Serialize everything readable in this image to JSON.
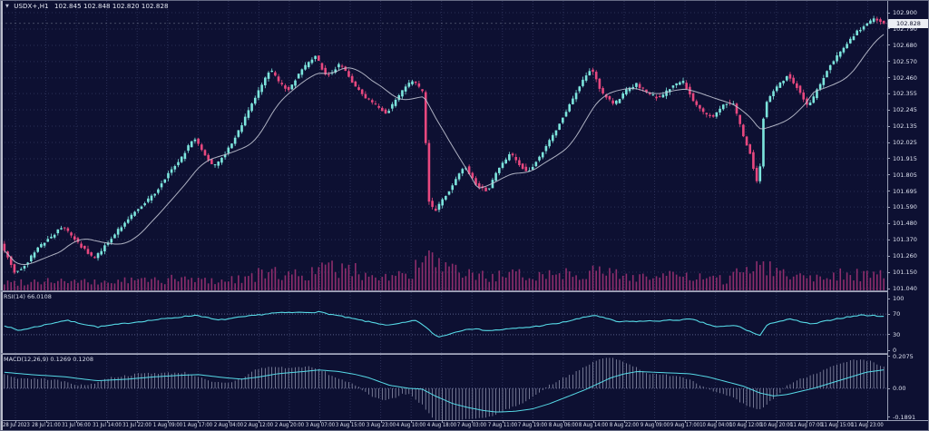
{
  "window": {
    "dropdown_arrow": "▼",
    "title_symbol": "USDX+,H1",
    "title_ohlc": "102.845 102.848 102.820 102.828"
  },
  "panes": {
    "rsi_label": "RSI(14) 66.0108",
    "macd_label": "MACD(12,26,9) 0.1269 0.1208"
  },
  "price_axis": {
    "labels": [
      "102.900",
      "102.790",
      "102.680",
      "102.570",
      "102.460",
      "102.355",
      "102.245",
      "102.135",
      "102.025",
      "101.915",
      "101.805",
      "101.695",
      "101.590",
      "101.480",
      "101.370",
      "101.260",
      "101.150",
      "101.040"
    ],
    "current_tag": "102.828",
    "rsi_labels": [
      {
        "text": "100",
        "value": 100
      },
      {
        "text": "70",
        "value": 70
      },
      {
        "text": "30",
        "value": 30
      },
      {
        "text": "0",
        "value": 0
      }
    ],
    "macd_labels": [
      {
        "text": "0.2075",
        "value": 0.2075
      },
      {
        "text": "0.00",
        "value": 0
      },
      {
        "text": "-0.1891",
        "value": -0.1891
      }
    ]
  },
  "time_axis": {
    "labels": [
      "28 Jul 2023",
      "28 Jul 21:00",
      "31 Jul 06:00",
      "31 Jul 14:00",
      "31 Jul 22:00",
      "1 Aug 09:00",
      "1 Aug 17:00",
      "2 Aug 04:00",
      "2 Aug 12:00",
      "2 Aug 20:00",
      "3 Aug 07:00",
      "3 Aug 15:00",
      "3 Aug 23:00",
      "4 Aug 10:00",
      "4 Aug 18:00",
      "7 Aug 03:00",
      "7 Aug 11:00",
      "7 Aug 19:00",
      "8 Aug 06:00",
      "8 Aug 14:00",
      "8 Aug 22:00",
      "9 Aug 09:00",
      "9 Aug 17:00",
      "10 Aug 04:00",
      "10 Aug 12:00",
      "10 Aug 20:00",
      "11 Aug 07:00",
      "11 Aug 15:00",
      "11 Aug 23:00"
    ]
  },
  "colors": {
    "background": "#0d1032",
    "grid": "#2b3057",
    "level": "#565c86",
    "bull": "#7ce5dd",
    "bear": "#e8487f",
    "volume": "#a63377",
    "ma": "#c0c3d2",
    "indicator": "#56d9e6",
    "macd_hist": "#b9bdd4",
    "axis_text": "#dde1ef",
    "tag_bg": "#eceef4",
    "tag_text": "#10122c"
  },
  "chart_data": {
    "type": "candlestick",
    "symbol": "USDX+",
    "timeframe": "H1",
    "current_bar": {
      "open": 102.845,
      "high": 102.848,
      "low": 102.82,
      "close": 102.828
    },
    "price_range": [
      101.04,
      102.9
    ],
    "bars": 264,
    "time_start": "28 Jul 2023 00:00",
    "time_end": "11 Aug 2023 23:00",
    "grid": "dotted",
    "legend_position": "none",
    "price_path": [
      [
        0.0,
        101.34
      ],
      [
        0.006,
        101.27
      ],
      [
        0.016,
        101.14
      ],
      [
        0.03,
        101.22
      ],
      [
        0.039,
        101.3
      ],
      [
        0.055,
        101.38
      ],
      [
        0.07,
        101.46
      ],
      [
        0.09,
        101.33
      ],
      [
        0.106,
        101.24
      ],
      [
        0.125,
        101.38
      ],
      [
        0.152,
        101.56
      ],
      [
        0.175,
        101.68
      ],
      [
        0.188,
        101.8
      ],
      [
        0.205,
        101.92
      ],
      [
        0.219,
        102.06
      ],
      [
        0.232,
        101.94
      ],
      [
        0.242,
        101.86
      ],
      [
        0.256,
        101.96
      ],
      [
        0.27,
        102.1
      ],
      [
        0.285,
        102.28
      ],
      [
        0.306,
        102.52
      ],
      [
        0.317,
        102.42
      ],
      [
        0.327,
        102.38
      ],
      [
        0.34,
        102.5
      ],
      [
        0.352,
        102.58
      ],
      [
        0.358,
        102.61
      ],
      [
        0.368,
        102.48
      ],
      [
        0.376,
        102.5
      ],
      [
        0.386,
        102.56
      ],
      [
        0.4,
        102.42
      ],
      [
        0.414,
        102.33
      ],
      [
        0.425,
        102.28
      ],
      [
        0.438,
        102.22
      ],
      [
        0.452,
        102.34
      ],
      [
        0.462,
        102.42
      ],
      [
        0.469,
        102.44
      ],
      [
        0.477,
        102.38
      ],
      [
        0.481,
        102.35
      ],
      [
        0.485,
        101.64
      ],
      [
        0.493,
        101.56
      ],
      [
        0.507,
        101.68
      ],
      [
        0.52,
        101.8
      ],
      [
        0.527,
        101.87
      ],
      [
        0.54,
        101.74
      ],
      [
        0.553,
        101.7
      ],
      [
        0.565,
        101.84
      ],
      [
        0.579,
        101.95
      ],
      [
        0.59,
        101.87
      ],
      [
        0.599,
        101.82
      ],
      [
        0.615,
        101.95
      ],
      [
        0.63,
        102.1
      ],
      [
        0.65,
        102.32
      ],
      [
        0.665,
        102.48
      ],
      [
        0.671,
        102.53
      ],
      [
        0.683,
        102.36
      ],
      [
        0.697,
        102.28
      ],
      [
        0.71,
        102.37
      ],
      [
        0.722,
        102.42
      ],
      [
        0.735,
        102.36
      ],
      [
        0.748,
        102.32
      ],
      [
        0.762,
        102.4
      ],
      [
        0.775,
        102.44
      ],
      [
        0.79,
        102.28
      ],
      [
        0.8,
        102.22
      ],
      [
        0.81,
        102.2
      ],
      [
        0.822,
        102.28
      ],
      [
        0.832,
        102.3
      ],
      [
        0.845,
        102.05
      ],
      [
        0.852,
        101.95
      ],
      [
        0.859,
        101.76
      ],
      [
        0.863,
        101.85
      ],
      [
        0.868,
        102.28
      ],
      [
        0.88,
        102.38
      ],
      [
        0.894,
        102.48
      ],
      [
        0.905,
        102.4
      ],
      [
        0.918,
        102.26
      ],
      [
        0.928,
        102.38
      ],
      [
        0.943,
        102.55
      ],
      [
        0.958,
        102.66
      ],
      [
        0.974,
        102.78
      ],
      [
        0.985,
        102.82
      ],
      [
        0.993,
        102.87
      ],
      [
        1.0,
        102.83
      ]
    ],
    "volume_profile": [
      [
        0.0,
        0.22
      ],
      [
        0.05,
        0.3
      ],
      [
        0.1,
        0.22
      ],
      [
        0.15,
        0.3
      ],
      [
        0.2,
        0.32
      ],
      [
        0.25,
        0.28
      ],
      [
        0.3,
        0.5
      ],
      [
        0.34,
        0.45
      ],
      [
        0.37,
        0.65
      ],
      [
        0.4,
        0.55
      ],
      [
        0.43,
        0.4
      ],
      [
        0.46,
        0.45
      ],
      [
        0.485,
        1.0
      ],
      [
        0.5,
        0.6
      ],
      [
        0.53,
        0.45
      ],
      [
        0.56,
        0.4
      ],
      [
        0.6,
        0.45
      ],
      [
        0.63,
        0.5
      ],
      [
        0.67,
        0.55
      ],
      [
        0.7,
        0.45
      ],
      [
        0.73,
        0.4
      ],
      [
        0.76,
        0.42
      ],
      [
        0.79,
        0.35
      ],
      [
        0.82,
        0.3
      ],
      [
        0.859,
        0.9
      ],
      [
        0.868,
        0.7
      ],
      [
        0.9,
        0.4
      ],
      [
        0.93,
        0.45
      ],
      [
        0.96,
        0.5
      ],
      [
        1.0,
        0.4
      ]
    ],
    "rsi": {
      "period": 14,
      "current": 66.0108,
      "levels": [
        70,
        30
      ],
      "scale": [
        0,
        100
      ],
      "path": [
        [
          0.0,
          48
        ],
        [
          0.016,
          38
        ],
        [
          0.07,
          58
        ],
        [
          0.106,
          45
        ],
        [
          0.152,
          55
        ],
        [
          0.219,
          68
        ],
        [
          0.242,
          58
        ],
        [
          0.306,
          72
        ],
        [
          0.358,
          74
        ],
        [
          0.414,
          55
        ],
        [
          0.438,
          48
        ],
        [
          0.469,
          58
        ],
        [
          0.493,
          25
        ],
        [
          0.527,
          42
        ],
        [
          0.553,
          38
        ],
        [
          0.599,
          45
        ],
        [
          0.63,
          52
        ],
        [
          0.671,
          68
        ],
        [
          0.697,
          55
        ],
        [
          0.748,
          57
        ],
        [
          0.781,
          60
        ],
        [
          0.81,
          45
        ],
        [
          0.832,
          48
        ],
        [
          0.859,
          28
        ],
        [
          0.869,
          52
        ],
        [
          0.894,
          60
        ],
        [
          0.918,
          50
        ],
        [
          0.943,
          60
        ],
        [
          0.974,
          68
        ],
        [
          1.0,
          66
        ]
      ]
    },
    "macd": {
      "fast": 12,
      "slow": 26,
      "signal_period": 9,
      "main_value": 0.1269,
      "signal_value": 0.1208,
      "scale": [
        -0.1891,
        0.2075
      ],
      "signal_path": [
        [
          0.0,
          0.105
        ],
        [
          0.03,
          0.09
        ],
        [
          0.07,
          0.075
        ],
        [
          0.09,
          0.06
        ],
        [
          0.106,
          0.05
        ],
        [
          0.14,
          0.06
        ],
        [
          0.17,
          0.075
        ],
        [
          0.2,
          0.085
        ],
        [
          0.22,
          0.09
        ],
        [
          0.25,
          0.07
        ],
        [
          0.27,
          0.06
        ],
        [
          0.29,
          0.075
        ],
        [
          0.31,
          0.095
        ],
        [
          0.34,
          0.11
        ],
        [
          0.358,
          0.12
        ],
        [
          0.38,
          0.11
        ],
        [
          0.4,
          0.09
        ],
        [
          0.414,
          0.07
        ],
        [
          0.438,
          0.02
        ],
        [
          0.46,
          0.0
        ],
        [
          0.475,
          -0.005
        ],
        [
          0.49,
          -0.05
        ],
        [
          0.51,
          -0.1
        ],
        [
          0.527,
          -0.125
        ],
        [
          0.545,
          -0.145
        ],
        [
          0.56,
          -0.155
        ],
        [
          0.58,
          -0.15
        ],
        [
          0.6,
          -0.135
        ],
        [
          0.62,
          -0.1
        ],
        [
          0.64,
          -0.055
        ],
        [
          0.66,
          -0.01
        ],
        [
          0.675,
          0.03
        ],
        [
          0.69,
          0.07
        ],
        [
          0.705,
          0.095
        ],
        [
          0.72,
          0.11
        ],
        [
          0.74,
          0.105
        ],
        [
          0.76,
          0.1
        ],
        [
          0.78,
          0.095
        ],
        [
          0.8,
          0.075
        ],
        [
          0.82,
          0.045
        ],
        [
          0.84,
          0.015
        ],
        [
          0.859,
          -0.03
        ],
        [
          0.875,
          -0.05
        ],
        [
          0.89,
          -0.04
        ],
        [
          0.905,
          -0.02
        ],
        [
          0.92,
          0.0
        ],
        [
          0.94,
          0.035
        ],
        [
          0.96,
          0.07
        ],
        [
          0.98,
          0.105
        ],
        [
          1.0,
          0.121
        ]
      ]
    }
  }
}
